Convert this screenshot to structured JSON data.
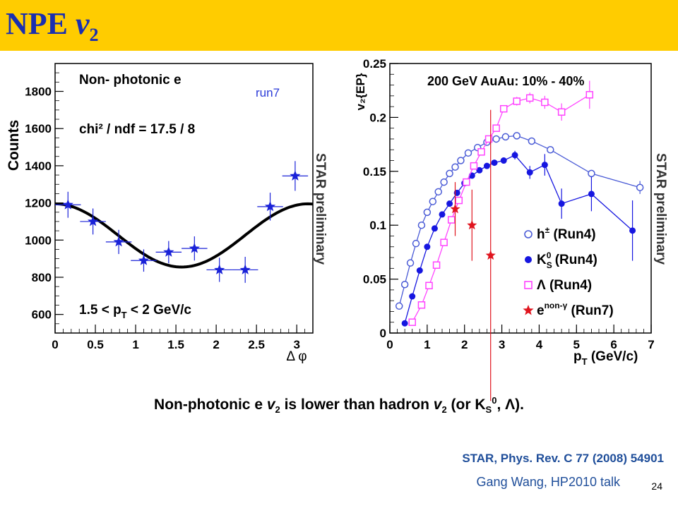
{
  "slide": {
    "title_main": "NPE ",
    "title_var": "v",
    "title_sub": "2",
    "caption": {
      "p1": "Non-photonic e ",
      "v": "v",
      "sub2": "2",
      "p2": " is lower than hadron ",
      "v2": "v",
      "sub2b": "2",
      "p3": " (or K",
      "k_sub": "S",
      "k_sup": "0",
      "p4": ", Λ)."
    },
    "reference": "STAR, Phys. Rev. C 77 (2008) 54901",
    "talk": "Gang Wang, HP2010 talk",
    "page_number": "24"
  },
  "chart_data": [
    {
      "type": "scatter",
      "ylabel": "Counts",
      "xlabel": "Δ φ",
      "xlim": [
        0,
        3.2
      ],
      "ylim": [
        500,
        1950
      ],
      "xticks": [
        "0",
        "0.5",
        "1",
        "1.5",
        "2",
        "2.5",
        "3"
      ],
      "yticks": [
        "600",
        "800",
        "1000",
        "1200",
        "1400",
        "1600",
        "1800"
      ],
      "annotations": {
        "line1": "Non- photonic e",
        "line2": "chi² / ndf = 17.5 / 8",
        "line3": "1.5 < p",
        "line3_sub": "T",
        "line3_rest": " < 2 GeV/c",
        "run": "run7",
        "preliminary": "STAR preliminary"
      },
      "series": [
        {
          "values": [
            {
              "x": 0.16,
              "y": 1190,
              "ex": 0.16,
              "ey": 70
            },
            {
              "x": 0.47,
              "y": 1100,
              "ex": 0.16,
              "ey": 70
            },
            {
              "x": 0.79,
              "y": 990,
              "ex": 0.16,
              "ey": 65
            },
            {
              "x": 1.1,
              "y": 890,
              "ex": 0.16,
              "ey": 60
            },
            {
              "x": 1.41,
              "y": 935,
              "ex": 0.16,
              "ey": 60
            },
            {
              "x": 1.73,
              "y": 955,
              "ex": 0.16,
              "ey": 65
            },
            {
              "x": 2.04,
              "y": 840,
              "ex": 0.16,
              "ey": 65
            },
            {
              "x": 2.36,
              "y": 840,
              "ex": 0.16,
              "ey": 70
            },
            {
              "x": 2.67,
              "y": 1180,
              "ex": 0.16,
              "ey": 75
            },
            {
              "x": 2.98,
              "y": 1345,
              "ex": 0.16,
              "ey": 80
            }
          ]
        }
      ],
      "fit": {
        "a": 1025,
        "b": 170
      }
    },
    {
      "type": "scatter",
      "title": "200 GeV AuAu: 10% - 40%",
      "ylabel": "v₂{EP}",
      "xlabel": "p",
      "xlabel_sub": "T",
      "xlabel_rest": " (GeV/c)",
      "xlim": [
        0,
        7
      ],
      "ylim": [
        0,
        0.25
      ],
      "xticks": [
        "0",
        "1",
        "2",
        "3",
        "4",
        "5",
        "6",
        "7"
      ],
      "yticks": [
        "0",
        "0.05",
        "0.1",
        "0.15",
        "0.2",
        "0.25"
      ],
      "preliminary": "STAR preliminary",
      "legend_position": "bottom-right",
      "legend": [
        {
          "symbol": "open-circle",
          "color": "#4a5bd6",
          "label": "h",
          "sup": "±",
          "rest": " (Run4)"
        },
        {
          "symbol": "filled-circle",
          "color": "#1616e0",
          "label": "K",
          "sub": "S",
          "sup": "0",
          "rest": " (Run4)"
        },
        {
          "symbol": "open-square",
          "color": "#ff44ff",
          "label": "Λ (Run4)"
        },
        {
          "symbol": "star",
          "color": "#e0141e",
          "label": "e",
          "sup": "non-γ",
          "rest": " (Run7)"
        }
      ],
      "series": [
        {
          "name": "h± (Run4)",
          "marker": "open-circle",
          "color": "#4a5bd6",
          "x": [
            0.25,
            0.4,
            0.55,
            0.7,
            0.85,
            1.0,
            1.15,
            1.3,
            1.45,
            1.6,
            1.75,
            1.9,
            2.1,
            2.35,
            2.6,
            2.85,
            3.1,
            3.4,
            3.8,
            4.3,
            5.4,
            6.7
          ],
          "y": [
            0.025,
            0.045,
            0.065,
            0.083,
            0.1,
            0.112,
            0.122,
            0.131,
            0.14,
            0.148,
            0.154,
            0.16,
            0.167,
            0.172,
            0.177,
            0.18,
            0.182,
            0.183,
            0.178,
            0.17,
            0.148,
            0.135
          ],
          "err": [
            0,
            0,
            0,
            0,
            0,
            0,
            0,
            0,
            0,
            0,
            0,
            0,
            0,
            0,
            0,
            0,
            0,
            0,
            0,
            0,
            0,
            0.006
          ]
        },
        {
          "name": "K0S (Run4)",
          "marker": "filled-circle",
          "color": "#1616e0",
          "x": [
            0.4,
            0.6,
            0.8,
            1.0,
            1.2,
            1.4,
            1.6,
            1.8,
            2.0,
            2.2,
            2.4,
            2.6,
            2.8,
            3.05,
            3.35,
            3.75,
            4.15,
            4.6,
            5.4,
            6.5
          ],
          "y": [
            0.009,
            0.034,
            0.058,
            0.08,
            0.097,
            0.11,
            0.12,
            0.13,
            0.139,
            0.146,
            0.151,
            0.155,
            0.158,
            0.16,
            0.165,
            0.149,
            0.156,
            0.12,
            0.129,
            0.095
          ],
          "err": [
            0,
            0,
            0,
            0,
            0,
            0,
            0,
            0,
            0,
            0,
            0,
            0,
            0,
            0,
            0.004,
            0.006,
            0.01,
            0.014,
            0.016,
            0.028
          ]
        },
        {
          "name": "Λ (Run4)",
          "marker": "open-square",
          "color": "#ff44ff",
          "x": [
            0.6,
            0.85,
            1.05,
            1.25,
            1.45,
            1.65,
            1.85,
            2.05,
            2.25,
            2.45,
            2.65,
            2.85,
            3.05,
            3.4,
            3.75,
            4.15,
            4.6,
            5.35
          ],
          "y": [
            0.01,
            0.026,
            0.044,
            0.063,
            0.084,
            0.105,
            0.123,
            0.14,
            0.155,
            0.168,
            0.18,
            0.19,
            0.208,
            0.215,
            0.218,
            0.214,
            0.205,
            0.221
          ],
          "err": [
            0,
            0,
            0,
            0,
            0,
            0,
            0,
            0,
            0,
            0,
            0,
            0,
            0,
            0.004,
            0.005,
            0.006,
            0.008,
            0.013
          ]
        },
        {
          "name": "e non-γ (Run7)",
          "marker": "star",
          "color": "#e0141e",
          "x": [
            1.75,
            2.2,
            2.7
          ],
          "y": [
            0.115,
            0.1,
            0.072
          ],
          "err": [
            0.025,
            0.033,
            0.135
          ]
        }
      ]
    }
  ]
}
